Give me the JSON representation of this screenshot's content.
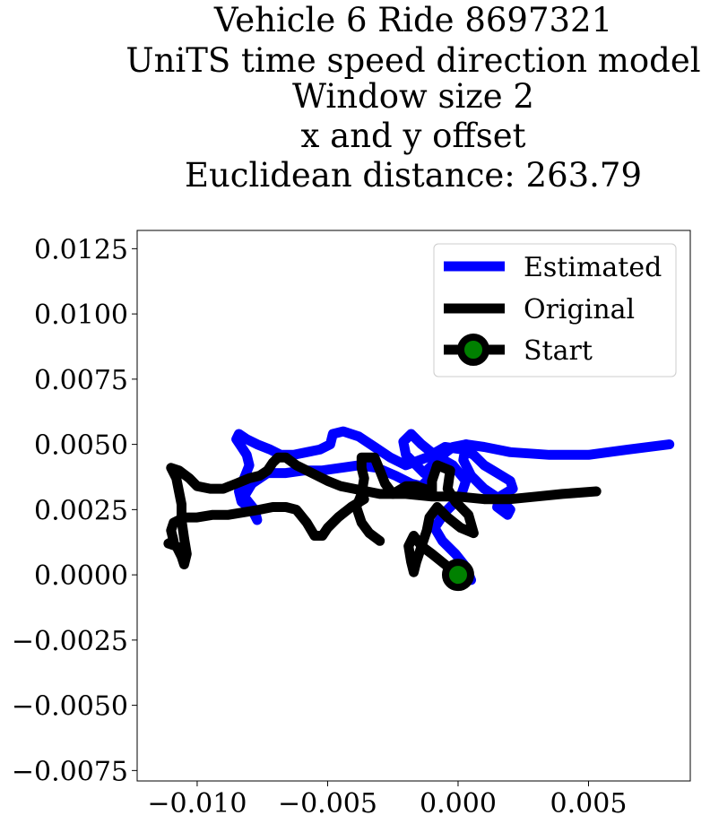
{
  "chart_data": {
    "type": "line",
    "title_lines": [
      "Vehicle 6 Ride 8697321",
      "UniTS time speed direction model",
      "Window size 2",
      "x and y offset",
      "Euclidean distance: 263.79"
    ],
    "xlabel": "",
    "ylabel": "",
    "xlim": [
      -0.0123,
      0.0089
    ],
    "ylim": [
      -0.0079,
      0.0132
    ],
    "xticks": [
      -0.01,
      -0.005,
      0.0,
      0.005
    ],
    "xtick_labels": [
      "−0.010",
      "−0.005",
      "0.000",
      "0.005"
    ],
    "yticks": [
      0.0125,
      0.01,
      0.0075,
      0.005,
      0.0025,
      0.0,
      -0.0025,
      -0.005,
      -0.0075
    ],
    "ytick_labels": [
      "0.0125",
      "0.0100",
      "0.0075",
      "0.0050",
      "0.0025",
      "0.0000",
      "−0.0025",
      "−0.0050",
      "−0.0075"
    ],
    "grid": false,
    "legend_position": "top-right",
    "legend": [
      "Estimated",
      "Original",
      "Start"
    ],
    "series": [
      {
        "name": "Estimated",
        "color": "#0000ff",
        "points": [
          [
            0.0005,
            -0.0002
          ],
          [
            0.0003,
            0.0003
          ],
          [
            -0.0001,
            0.0008
          ],
          [
            -0.0006,
            0.0013
          ],
          [
            -0.0009,
            0.0018
          ],
          [
            -0.0005,
            0.0024
          ],
          [
            0.0001,
            0.003
          ],
          [
            0.0003,
            0.0036
          ],
          [
            -0.0002,
            0.0042
          ],
          [
            -0.0009,
            0.0046
          ],
          [
            -0.0014,
            0.005
          ],
          [
            -0.0018,
            0.0054
          ],
          [
            -0.0021,
            0.0051
          ],
          [
            -0.002,
            0.0046
          ],
          [
            -0.0016,
            0.0042
          ],
          [
            -0.0013,
            0.0039
          ],
          [
            -0.001,
            0.0042
          ],
          [
            -0.0006,
            0.0046
          ],
          [
            -0.0002,
            0.0049
          ],
          [
            0.0003,
            0.005
          ],
          [
            0.001,
            0.0049
          ],
          [
            0.002,
            0.0047
          ],
          [
            0.0035,
            0.0046
          ],
          [
            0.005,
            0.0046
          ],
          [
            0.0065,
            0.0048
          ],
          [
            0.0081,
            0.005
          ]
        ]
      },
      {
        "name": "Estimated",
        "color": "#0000ff",
        "points": [
          [
            0.0003,
            0.005
          ],
          [
            0.0002,
            0.0044
          ],
          [
            0.0005,
            0.0038
          ],
          [
            0.001,
            0.0033
          ],
          [
            0.0016,
            0.0029
          ],
          [
            0.002,
            0.0025
          ],
          [
            0.0019,
            0.0023
          ],
          [
            0.0015,
            0.0026
          ],
          [
            0.0016,
            0.003
          ],
          [
            0.0021,
            0.0033
          ],
          [
            0.002,
            0.0036
          ],
          [
            0.0015,
            0.0039
          ],
          [
            0.001,
            0.0042
          ],
          [
            0.0006,
            0.0046
          ],
          [
            0.0002,
            0.0048
          ],
          [
            -0.0005,
            0.0049
          ],
          [
            -0.0012,
            0.0045
          ],
          [
            -0.002,
            0.0042
          ],
          [
            -0.0026,
            0.0045
          ],
          [
            -0.0032,
            0.0049
          ],
          [
            -0.0038,
            0.0053
          ],
          [
            -0.0044,
            0.0055
          ],
          [
            -0.0048,
            0.0054
          ],
          [
            -0.0049,
            0.005
          ],
          [
            -0.0053,
            0.0048
          ],
          [
            -0.0058,
            0.0047
          ],
          [
            -0.0063,
            0.0046
          ],
          [
            -0.0068,
            0.0046
          ],
          [
            -0.0072,
            0.0048
          ],
          [
            -0.0077,
            0.005
          ],
          [
            -0.0081,
            0.0052
          ],
          [
            -0.0084,
            0.0054
          ],
          [
            -0.0085,
            0.0052
          ],
          [
            -0.0083,
            0.0049
          ],
          [
            -0.0081,
            0.0046
          ],
          [
            -0.008,
            0.0042
          ],
          [
            -0.0082,
            0.0037
          ],
          [
            -0.0084,
            0.0032
          ],
          [
            -0.0083,
            0.0028
          ],
          [
            -0.0079,
            0.0025
          ],
          [
            -0.0077,
            0.0021
          ],
          [
            -0.0078,
            0.0025
          ],
          [
            -0.0082,
            0.003
          ],
          [
            -0.0079,
            0.0035
          ],
          [
            -0.0073,
            0.0039
          ],
          [
            -0.0066,
            0.0039
          ],
          [
            -0.0059,
            0.004
          ],
          [
            -0.0052,
            0.004
          ],
          [
            -0.0045,
            0.0041
          ],
          [
            -0.0038,
            0.0042
          ],
          [
            -0.0031,
            0.0041
          ],
          [
            -0.0024,
            0.0038
          ],
          [
            -0.0018,
            0.0035
          ],
          [
            -0.0014,
            0.0034
          ],
          [
            -0.0011,
            0.0037
          ]
        ]
      },
      {
        "name": "Original",
        "color": "#000000",
        "points": [
          [
            0.0,
            0.0
          ],
          [
            -0.0005,
            0.0004
          ],
          [
            -0.001,
            0.0008
          ],
          [
            -0.0014,
            0.0011
          ],
          [
            -0.0017,
            0.0015
          ],
          [
            -0.0019,
            0.0011
          ],
          [
            -0.0018,
            0.0005
          ],
          [
            -0.0017,
            0.0001
          ],
          [
            -0.0016,
            0.0005
          ],
          [
            -0.0014,
            0.0011
          ],
          [
            -0.0012,
            0.0017
          ],
          [
            -0.0011,
            0.0022
          ],
          [
            -0.0008,
            0.0026
          ],
          [
            -0.0004,
            0.0022
          ],
          [
            0.0001,
            0.0018
          ],
          [
            0.0006,
            0.0016
          ],
          [
            0.0004,
            0.0023
          ],
          [
            -0.0001,
            0.0028
          ],
          [
            -0.0004,
            0.0033
          ],
          [
            -0.0003,
            0.004
          ],
          [
            -0.0008,
            0.0042
          ],
          [
            -0.001,
            0.0036
          ],
          [
            -0.001,
            0.0032
          ],
          [
            -0.0016,
            0.0034
          ],
          [
            -0.002,
            0.0034
          ],
          [
            -0.0025,
            0.0031
          ],
          [
            -0.0028,
            0.0035
          ],
          [
            -0.003,
            0.004
          ],
          [
            -0.0032,
            0.0045
          ],
          [
            -0.0037,
            0.0045
          ],
          [
            -0.0037,
            0.0041
          ],
          [
            -0.0036,
            0.0037
          ],
          [
            -0.0037,
            0.0031
          ],
          [
            -0.0039,
            0.0026
          ],
          [
            -0.0037,
            0.002
          ],
          [
            -0.0034,
            0.0016
          ],
          [
            -0.003,
            0.0013
          ]
        ]
      },
      {
        "name": "Original",
        "color": "#000000",
        "points": [
          [
            -0.0036,
            0.0029
          ],
          [
            -0.0041,
            0.0026
          ],
          [
            -0.0046,
            0.0022
          ],
          [
            -0.005,
            0.0018
          ],
          [
            -0.0052,
            0.0015
          ],
          [
            -0.0055,
            0.0015
          ],
          [
            -0.0058,
            0.002
          ],
          [
            -0.0062,
            0.0025
          ],
          [
            -0.0066,
            0.0026
          ],
          [
            -0.0071,
            0.0026
          ],
          [
            -0.0076,
            0.0025
          ],
          [
            -0.0082,
            0.0024
          ],
          [
            -0.0088,
            0.0023
          ],
          [
            -0.0094,
            0.0023
          ],
          [
            -0.01,
            0.0022
          ],
          [
            -0.0105,
            0.0022
          ],
          [
            -0.0109,
            0.002
          ],
          [
            -0.011,
            0.0017
          ],
          [
            -0.0109,
            0.0013
          ],
          [
            -0.0111,
            0.0012
          ],
          [
            -0.0108,
            0.0011
          ],
          [
            -0.0106,
            0.0007
          ],
          [
            -0.0105,
            0.0004
          ],
          [
            -0.0104,
            0.0008
          ],
          [
            -0.0105,
            0.0014
          ],
          [
            -0.0106,
            0.0021
          ],
          [
            -0.0106,
            0.0027
          ],
          [
            -0.0107,
            0.0032
          ],
          [
            -0.0108,
            0.0037
          ],
          [
            -0.011,
            0.0041
          ],
          [
            -0.0107,
            0.004
          ],
          [
            -0.0103,
            0.0037
          ],
          [
            -0.01,
            0.0034
          ],
          [
            -0.0095,
            0.0033
          ],
          [
            -0.009,
            0.0033
          ],
          [
            -0.0085,
            0.0035
          ],
          [
            -0.008,
            0.0037
          ],
          [
            -0.0076,
            0.0038
          ],
          [
            -0.0073,
            0.004
          ],
          [
            -0.0071,
            0.0043
          ],
          [
            -0.0069,
            0.0045
          ],
          [
            -0.0066,
            0.0045
          ],
          [
            -0.0062,
            0.0042
          ],
          [
            -0.0058,
            0.004
          ],
          [
            -0.0054,
            0.0038
          ],
          [
            -0.005,
            0.0036
          ],
          [
            -0.0045,
            0.0034
          ],
          [
            -0.004,
            0.0033
          ],
          [
            -0.0035,
            0.0032
          ],
          [
            -0.003,
            0.0031
          ],
          [
            -0.002,
            0.0031
          ],
          [
            -0.001,
            0.003
          ],
          [
            0.0,
            0.003
          ],
          [
            0.001,
            0.0029
          ],
          [
            0.002,
            0.0029
          ],
          [
            0.003,
            0.003
          ],
          [
            0.004,
            0.0031
          ],
          [
            0.0053,
            0.0032
          ]
        ]
      }
    ],
    "start_marker": {
      "name": "Start",
      "x": 0.0,
      "y": 0.0,
      "edge_color": "#000000",
      "face_color": "#008000"
    }
  }
}
